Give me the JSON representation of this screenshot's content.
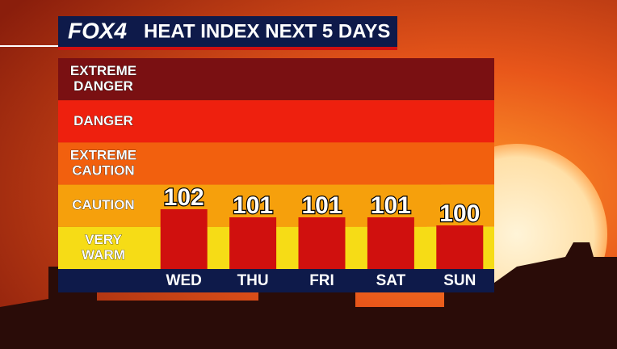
{
  "brand": "FOX4",
  "chart_data": {
    "type": "bar",
    "title": "HEAT INDEX NEXT 5 DAYS",
    "categories": [
      "WED",
      "THU",
      "FRI",
      "SAT",
      "SUN"
    ],
    "values": [
      102,
      101,
      101,
      101,
      100
    ],
    "color": "#d0100e",
    "ylim": [
      94.6,
      120.7
    ],
    "zones": [
      {
        "label": [
          "EXTREME",
          "DANGER"
        ],
        "color": "#7a1012"
      },
      {
        "label": [
          "DANGER"
        ],
        "color": "#ee200e"
      },
      {
        "label": [
          "EXTREME",
          "CAUTION"
        ],
        "color": "#f2600e"
      },
      {
        "label": [
          "CAUTION"
        ],
        "color": "#f6a00c"
      },
      {
        "label": [
          "VERY",
          "WARM"
        ],
        "color": "#f6dc16"
      }
    ]
  }
}
